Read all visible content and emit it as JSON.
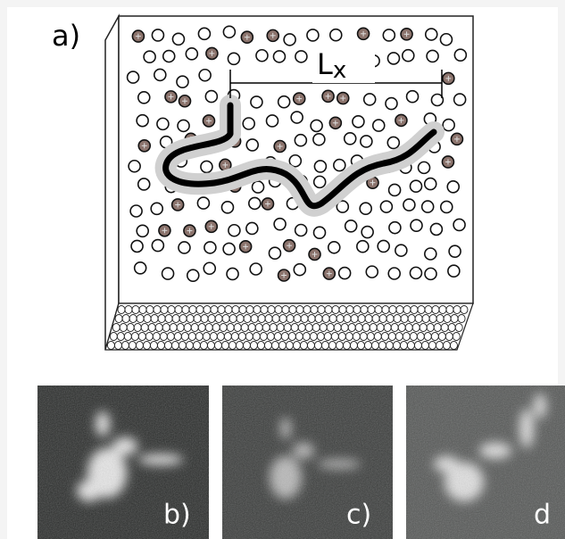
{
  "labels": {
    "a": "a)",
    "length": "L",
    "length_subscript": "x",
    "b": "b)",
    "c": "c)",
    "d": "d"
  }
}
